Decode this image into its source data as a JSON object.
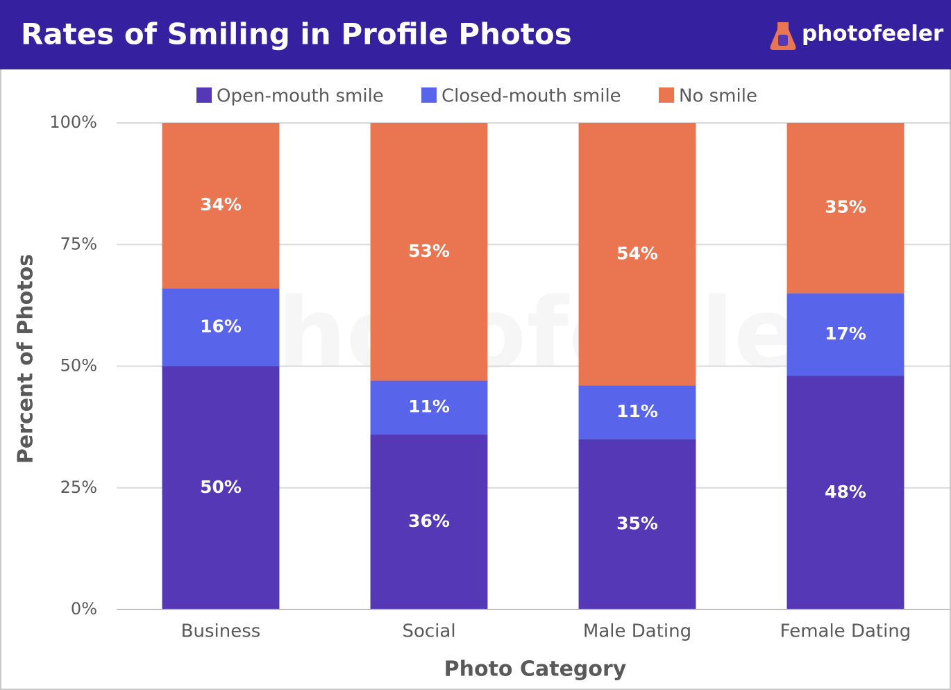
{
  "chart_data": {
    "type": "bar",
    "stacked": true,
    "title": "Rates of Smiling in Profile Photos",
    "brand": "photofeeler",
    "xlabel": "Photo Category",
    "ylabel": "Percent of Photos",
    "categories": [
      "Business",
      "Social",
      "Male Dating",
      "Female Dating"
    ],
    "series": [
      {
        "name": "Open-mouth smile",
        "color": "#5438b5",
        "values": [
          50,
          36,
          35,
          48
        ],
        "value_labels": [
          "50%",
          "36%",
          "35%",
          "48%"
        ]
      },
      {
        "name": "Closed-mouth smile",
        "color": "#5865ea",
        "values": [
          16,
          11,
          11,
          17
        ],
        "value_labels": [
          "16%",
          "11%",
          "11%",
          "17%"
        ]
      },
      {
        "name": "No smile",
        "color": "#e97551",
        "values": [
          34,
          53,
          54,
          35
        ],
        "value_labels": [
          "34%",
          "53%",
          "54%",
          "35%"
        ]
      }
    ],
    "ylim": [
      0,
      100
    ],
    "yticks": [
      {
        "value": 0,
        "label": "0%"
      },
      {
        "value": 25,
        "label": "25%"
      },
      {
        "value": 50,
        "label": "50%"
      },
      {
        "value": 75,
        "label": "75%"
      },
      {
        "value": 100,
        "label": "100%"
      }
    ],
    "grid": true,
    "legend": "top"
  }
}
